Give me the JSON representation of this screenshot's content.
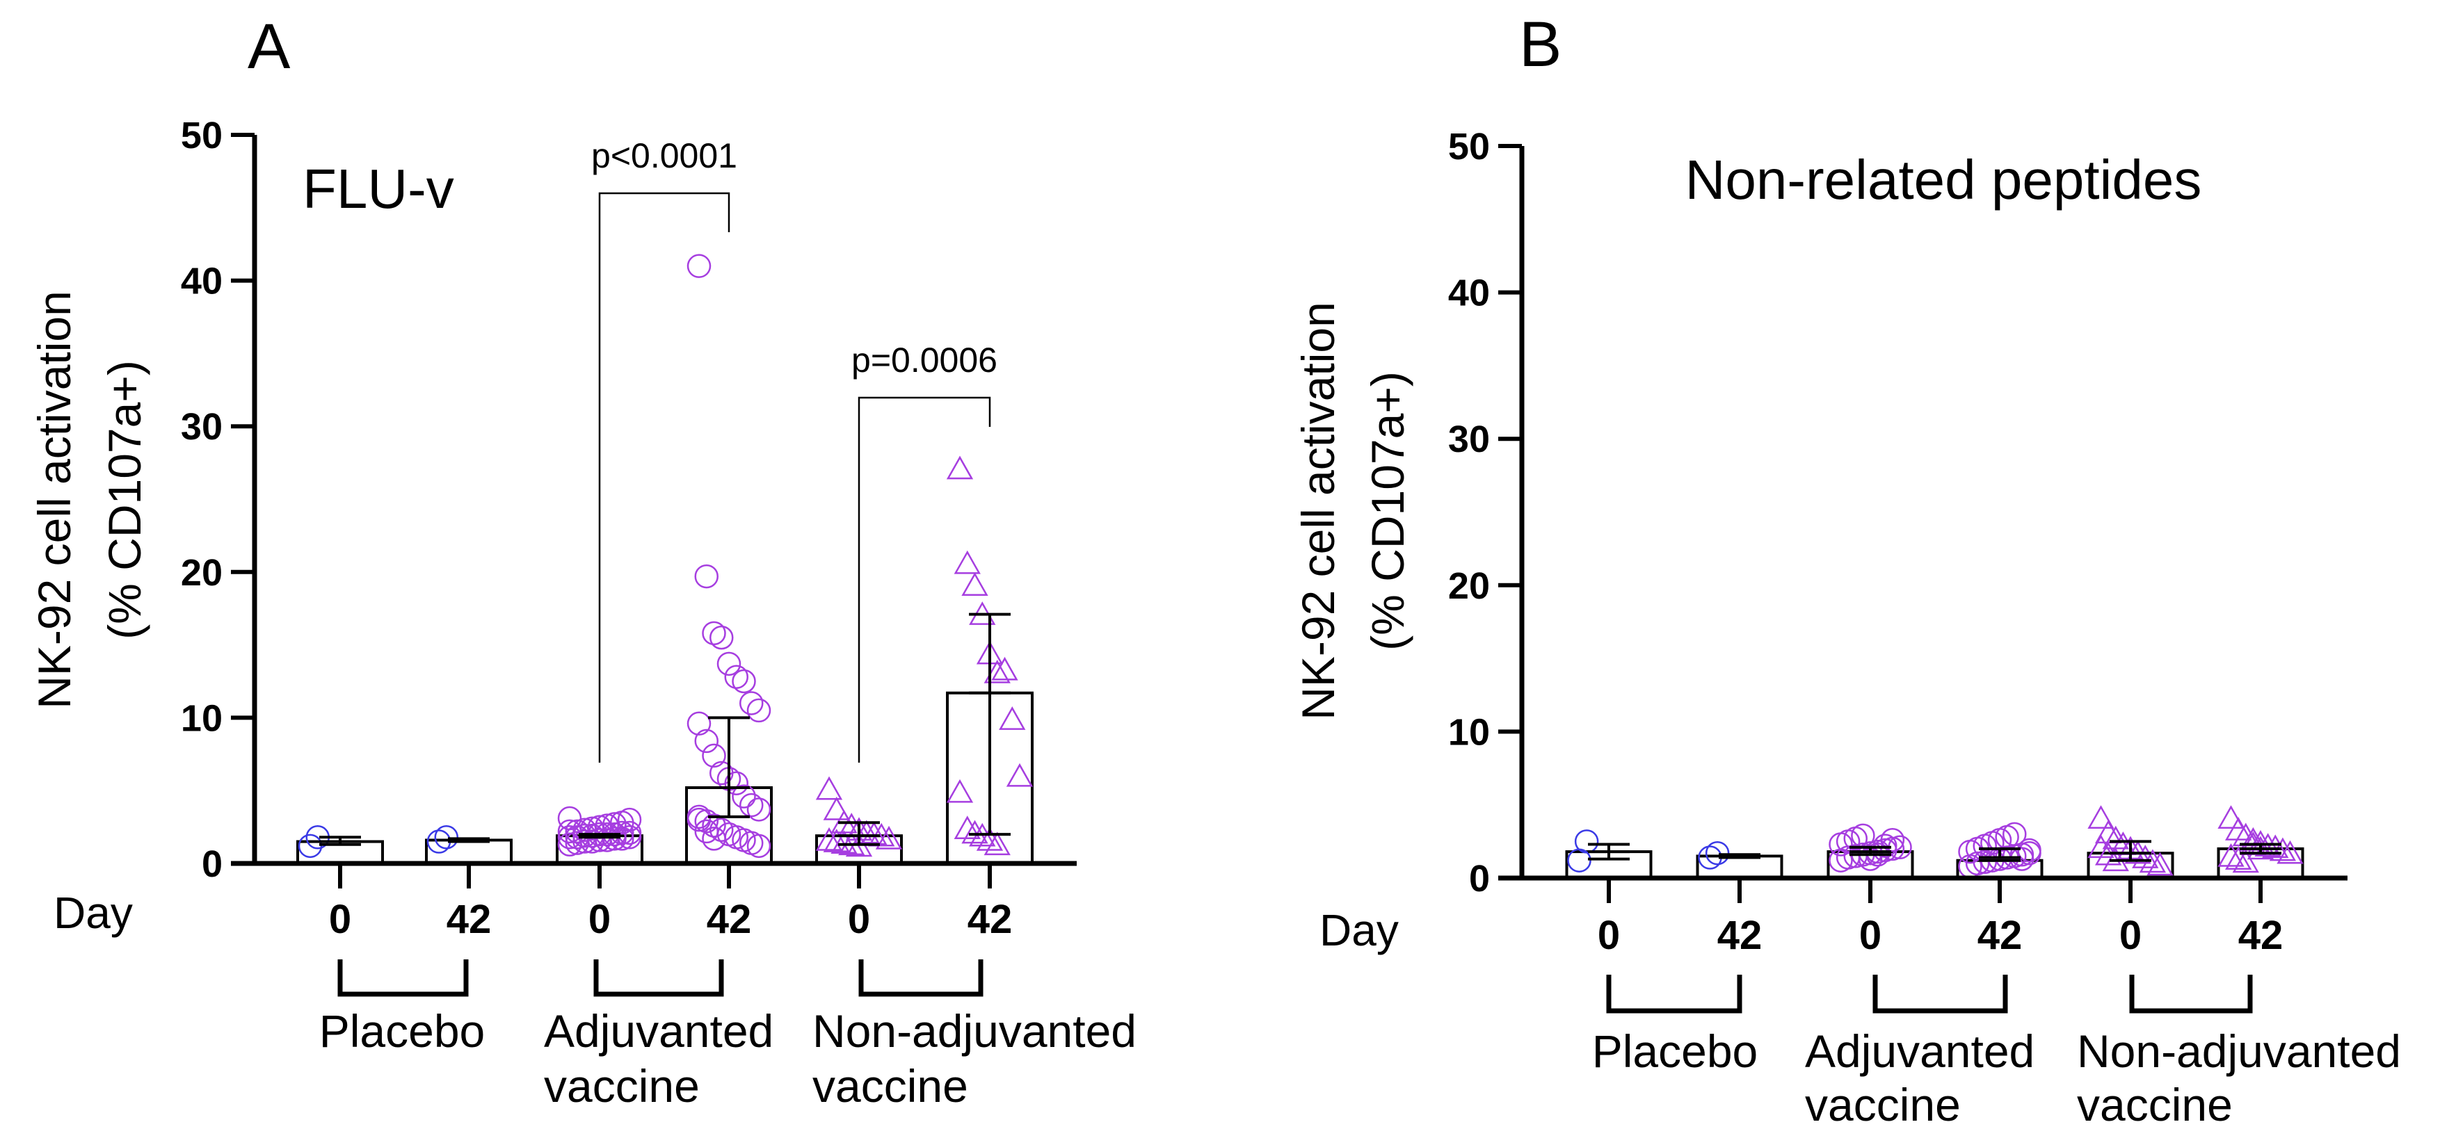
{
  "chart_data": [
    {
      "type": "bar",
      "panel_label": "A",
      "title": "FLU-v",
      "ylabel_line1": "NK-92 cell activation",
      "ylabel_line2": "(% CD107a+)",
      "xlabel": "Day",
      "ylim": [
        0,
        50
      ],
      "yticks": [
        "0",
        "10",
        "20",
        "30",
        "40",
        "50"
      ],
      "categories": [
        "0",
        "42",
        "0",
        "42",
        "0",
        "42"
      ],
      "groups": [
        {
          "label_line1": "Placebo",
          "label_line2": ""
        },
        {
          "label_line1": "Adjuvanted",
          "label_line2": "vaccine"
        },
        {
          "label_line1": "Non-adjuvanted",
          "label_line2": "vaccine"
        }
      ],
      "series": [
        {
          "name": "Placebo day 0",
          "marker": "circle",
          "color": "#3a3ae6",
          "bar": 1.5,
          "err": [
            1.3,
            1.8
          ],
          "points": [
            1.2,
            1.8
          ]
        },
        {
          "name": "Placebo day 42",
          "marker": "circle",
          "color": "#3a3ae6",
          "bar": 1.6,
          "err": [
            1.5,
            1.7
          ],
          "points": [
            1.5,
            1.8
          ]
        },
        {
          "name": "Adjuvanted day 0",
          "marker": "circle",
          "color": "#a63ee0",
          "bar": 1.9,
          "err": [
            1.8,
            2.0
          ],
          "points": [
            1.3,
            1.4,
            1.5,
            1.5,
            1.6,
            1.6,
            1.7,
            1.7,
            1.8,
            1.8,
            1.8,
            1.9,
            1.9,
            2.0,
            2.0,
            2.0,
            2.1,
            2.1,
            2.2,
            2.2,
            2.3,
            2.4,
            2.5,
            2.6,
            2.7,
            2.8,
            3.0,
            3.1
          ]
        },
        {
          "name": "Adjuvanted day 42",
          "marker": "circle",
          "color": "#a63ee0",
          "bar": 5.2,
          "err": [
            3.2,
            10.0
          ],
          "points": [
            41.0,
            19.7,
            15.8,
            15.5,
            13.7,
            12.8,
            12.5,
            11.0,
            10.5,
            9.6,
            8.4,
            7.4,
            6.2,
            5.8,
            5.5,
            4.6,
            4.0,
            3.7,
            3.2,
            2.9,
            2.6,
            2.3,
            2.0,
            1.8,
            1.6,
            1.4,
            1.2,
            3.0,
            2.2,
            1.7
          ]
        },
        {
          "name": "Non-adjuvanted day 0",
          "marker": "triangle",
          "color": "#a63ee0",
          "bar": 1.9,
          "err": [
            1.3,
            2.8
          ],
          "points": [
            5.0,
            3.6,
            2.7,
            2.5,
            2.2,
            2.0,
            1.9,
            1.8,
            1.6,
            1.5,
            1.4,
            1.3,
            1.2,
            1.1
          ]
        },
        {
          "name": "Non-adjuvanted day 42",
          "marker": "triangle",
          "color": "#a63ee0",
          "bar": 11.7,
          "err": [
            2.0,
            17.1
          ],
          "points": [
            27.0,
            20.5,
            19.0,
            17.0,
            14.3,
            13.0,
            13.2,
            9.8,
            5.9,
            4.8,
            2.3,
            2.0,
            1.8,
            1.5,
            1.2
          ]
        }
      ],
      "comparisons": [
        {
          "label": "p<0.0001",
          "from": 2,
          "to": 3
        },
        {
          "label": "p=0.0006",
          "from": 4,
          "to": 5
        }
      ]
    },
    {
      "type": "bar",
      "panel_label": "B",
      "title": "Non-related peptides",
      "ylabel_line1": "NK-92 cell activation",
      "ylabel_line2": "(% CD107a+)",
      "xlabel": "Day",
      "ylim": [
        0,
        50
      ],
      "yticks": [
        "0",
        "10",
        "20",
        "30",
        "40",
        "50"
      ],
      "categories": [
        "0",
        "42",
        "0",
        "42",
        "0",
        "42"
      ],
      "groups": [
        {
          "label_line1": "Placebo",
          "label_line2": ""
        },
        {
          "label_line1": "Adjuvanted",
          "label_line2": "vaccine"
        },
        {
          "label_line1": "Non-adjuvanted",
          "label_line2": "vaccine"
        }
      ],
      "series": [
        {
          "name": "Placebo day 0",
          "marker": "circle",
          "color": "#3a3ae6",
          "bar": 1.8,
          "err": [
            1.3,
            2.3
          ],
          "points": [
            1.2,
            2.5
          ]
        },
        {
          "name": "Placebo day 42",
          "marker": "circle",
          "color": "#3a3ae6",
          "bar": 1.5,
          "err": [
            1.4,
            1.6
          ],
          "points": [
            1.4,
            1.7
          ]
        },
        {
          "name": "Adjuvanted day 0",
          "marker": "circle",
          "color": "#a63ee0",
          "bar": 1.8,
          "err": [
            1.6,
            2.1
          ],
          "points": [
            1.2,
            1.4,
            1.5,
            1.6,
            1.7,
            1.8,
            1.9,
            2.0,
            2.1,
            2.3,
            2.5,
            2.7,
            2.9,
            1.3,
            1.6,
            2.2,
            2.6
          ]
        },
        {
          "name": "Adjuvanted day 42",
          "marker": "circle",
          "color": "#a63ee0",
          "bar": 1.2,
          "err": [
            1.4,
            2.0
          ],
          "points": [
            0.8,
            1.0,
            1.1,
            1.2,
            1.3,
            1.4,
            1.5,
            1.6,
            1.7,
            1.8,
            2.0,
            2.2,
            2.4,
            2.6,
            2.8,
            3.0,
            1.3,
            1.9
          ]
        },
        {
          "name": "Non-adjuvanted day 0",
          "marker": "triangle",
          "color": "#a63ee0",
          "bar": 1.7,
          "err": [
            1.2,
            2.5
          ],
          "points": [
            4.0,
            3.0,
            2.6,
            2.2,
            1.9,
            1.6,
            1.3,
            1.0,
            0.8,
            2.0,
            1.5,
            1.1
          ]
        },
        {
          "name": "Non-adjuvanted day 42",
          "marker": "triangle",
          "color": "#a63ee0",
          "bar": 2.0,
          "err": [
            1.7,
            2.3
          ],
          "points": [
            4.0,
            3.2,
            2.8,
            2.5,
            2.3,
            2.1,
            2.0,
            1.8,
            1.6,
            1.4,
            1.2,
            1.0,
            2.2,
            1.9
          ]
        }
      ],
      "comparisons": []
    }
  ]
}
